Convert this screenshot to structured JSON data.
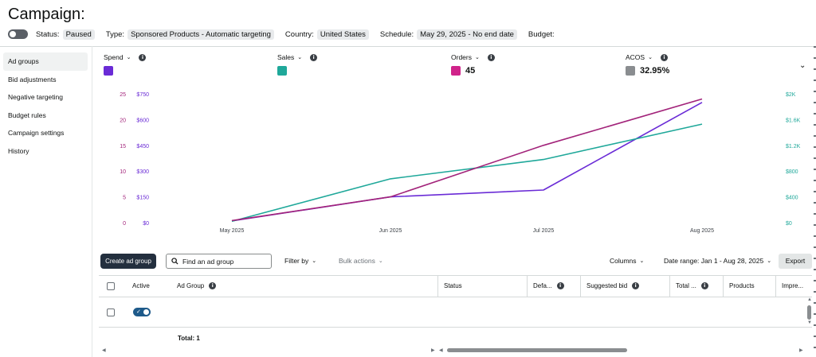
{
  "header": {
    "title": "Campaign:",
    "status_label": "Status:",
    "status_value": "Paused",
    "type_label": "Type:",
    "type_value": "Sponsored Products - Automatic targeting",
    "country_label": "Country:",
    "country_value": "United States",
    "schedule_label": "Schedule:",
    "schedule_value": "May 29, 2025 - No end date",
    "budget_label": "Budget:"
  },
  "sidebar": {
    "items": [
      {
        "label": "Ad groups",
        "active": true
      },
      {
        "label": "Bid adjustments"
      },
      {
        "label": "Negative targeting"
      },
      {
        "label": "Budget rules"
      },
      {
        "label": "Campaign settings"
      },
      {
        "label": "History"
      }
    ]
  },
  "metrics": [
    {
      "label": "Spend",
      "value": "",
      "color": "#6a2bd6"
    },
    {
      "label": "Sales",
      "value": "",
      "color": "#1fa89a"
    },
    {
      "label": "Orders",
      "value": "45",
      "color": "#d0238a"
    },
    {
      "label": "ACOS",
      "value": "32.95%",
      "color": "#8a8d90"
    }
  ],
  "chart_data": {
    "type": "line",
    "categories": [
      "May 2025",
      "Jun 2025",
      "Jul 2025",
      "Aug 2025"
    ],
    "left_axis_orders": {
      "ticks": [
        "25",
        "20",
        "15",
        "10",
        "5",
        "0"
      ],
      "range": [
        0,
        25
      ]
    },
    "left_axis_spend": {
      "ticks": [
        "$750",
        "$600",
        "$450",
        "$300",
        "$150",
        "$0"
      ],
      "range": [
        0,
        750
      ]
    },
    "right_axis_sales": {
      "ticks": [
        "$2K",
        "$1.6K",
        "$1.2K",
        "$800",
        "$400",
        "$0"
      ],
      "range": [
        0,
        2000
      ]
    },
    "series": [
      {
        "name": "Spend",
        "color": "#6a2bd6",
        "axis": "spend",
        "values": [
          10,
          150,
          190,
          700
        ]
      },
      {
        "name": "Sales",
        "color": "#1fa89a",
        "axis": "sales",
        "values": [
          20,
          680,
          980,
          1530
        ]
      },
      {
        "name": "Orders",
        "color": "#a2237a",
        "axis": "orders",
        "values": [
          0.4,
          5,
          15,
          24
        ]
      }
    ],
    "grid": false
  },
  "toolbar": {
    "create_label": "Create ad group",
    "search_placeholder": "Find an ad group",
    "filter_label": "Filter by",
    "bulk_label": "Bulk actions",
    "columns_label": "Columns",
    "date_range_label": "Date range: Jan 1 - Aug 28, 2025",
    "export_label": "Export"
  },
  "table": {
    "headers": [
      "Active",
      "Ad Group",
      "Status",
      "Defa...",
      "Suggested bid",
      "Total ...",
      "Products",
      "Impre..."
    ],
    "total_label": "Total: 1"
  }
}
